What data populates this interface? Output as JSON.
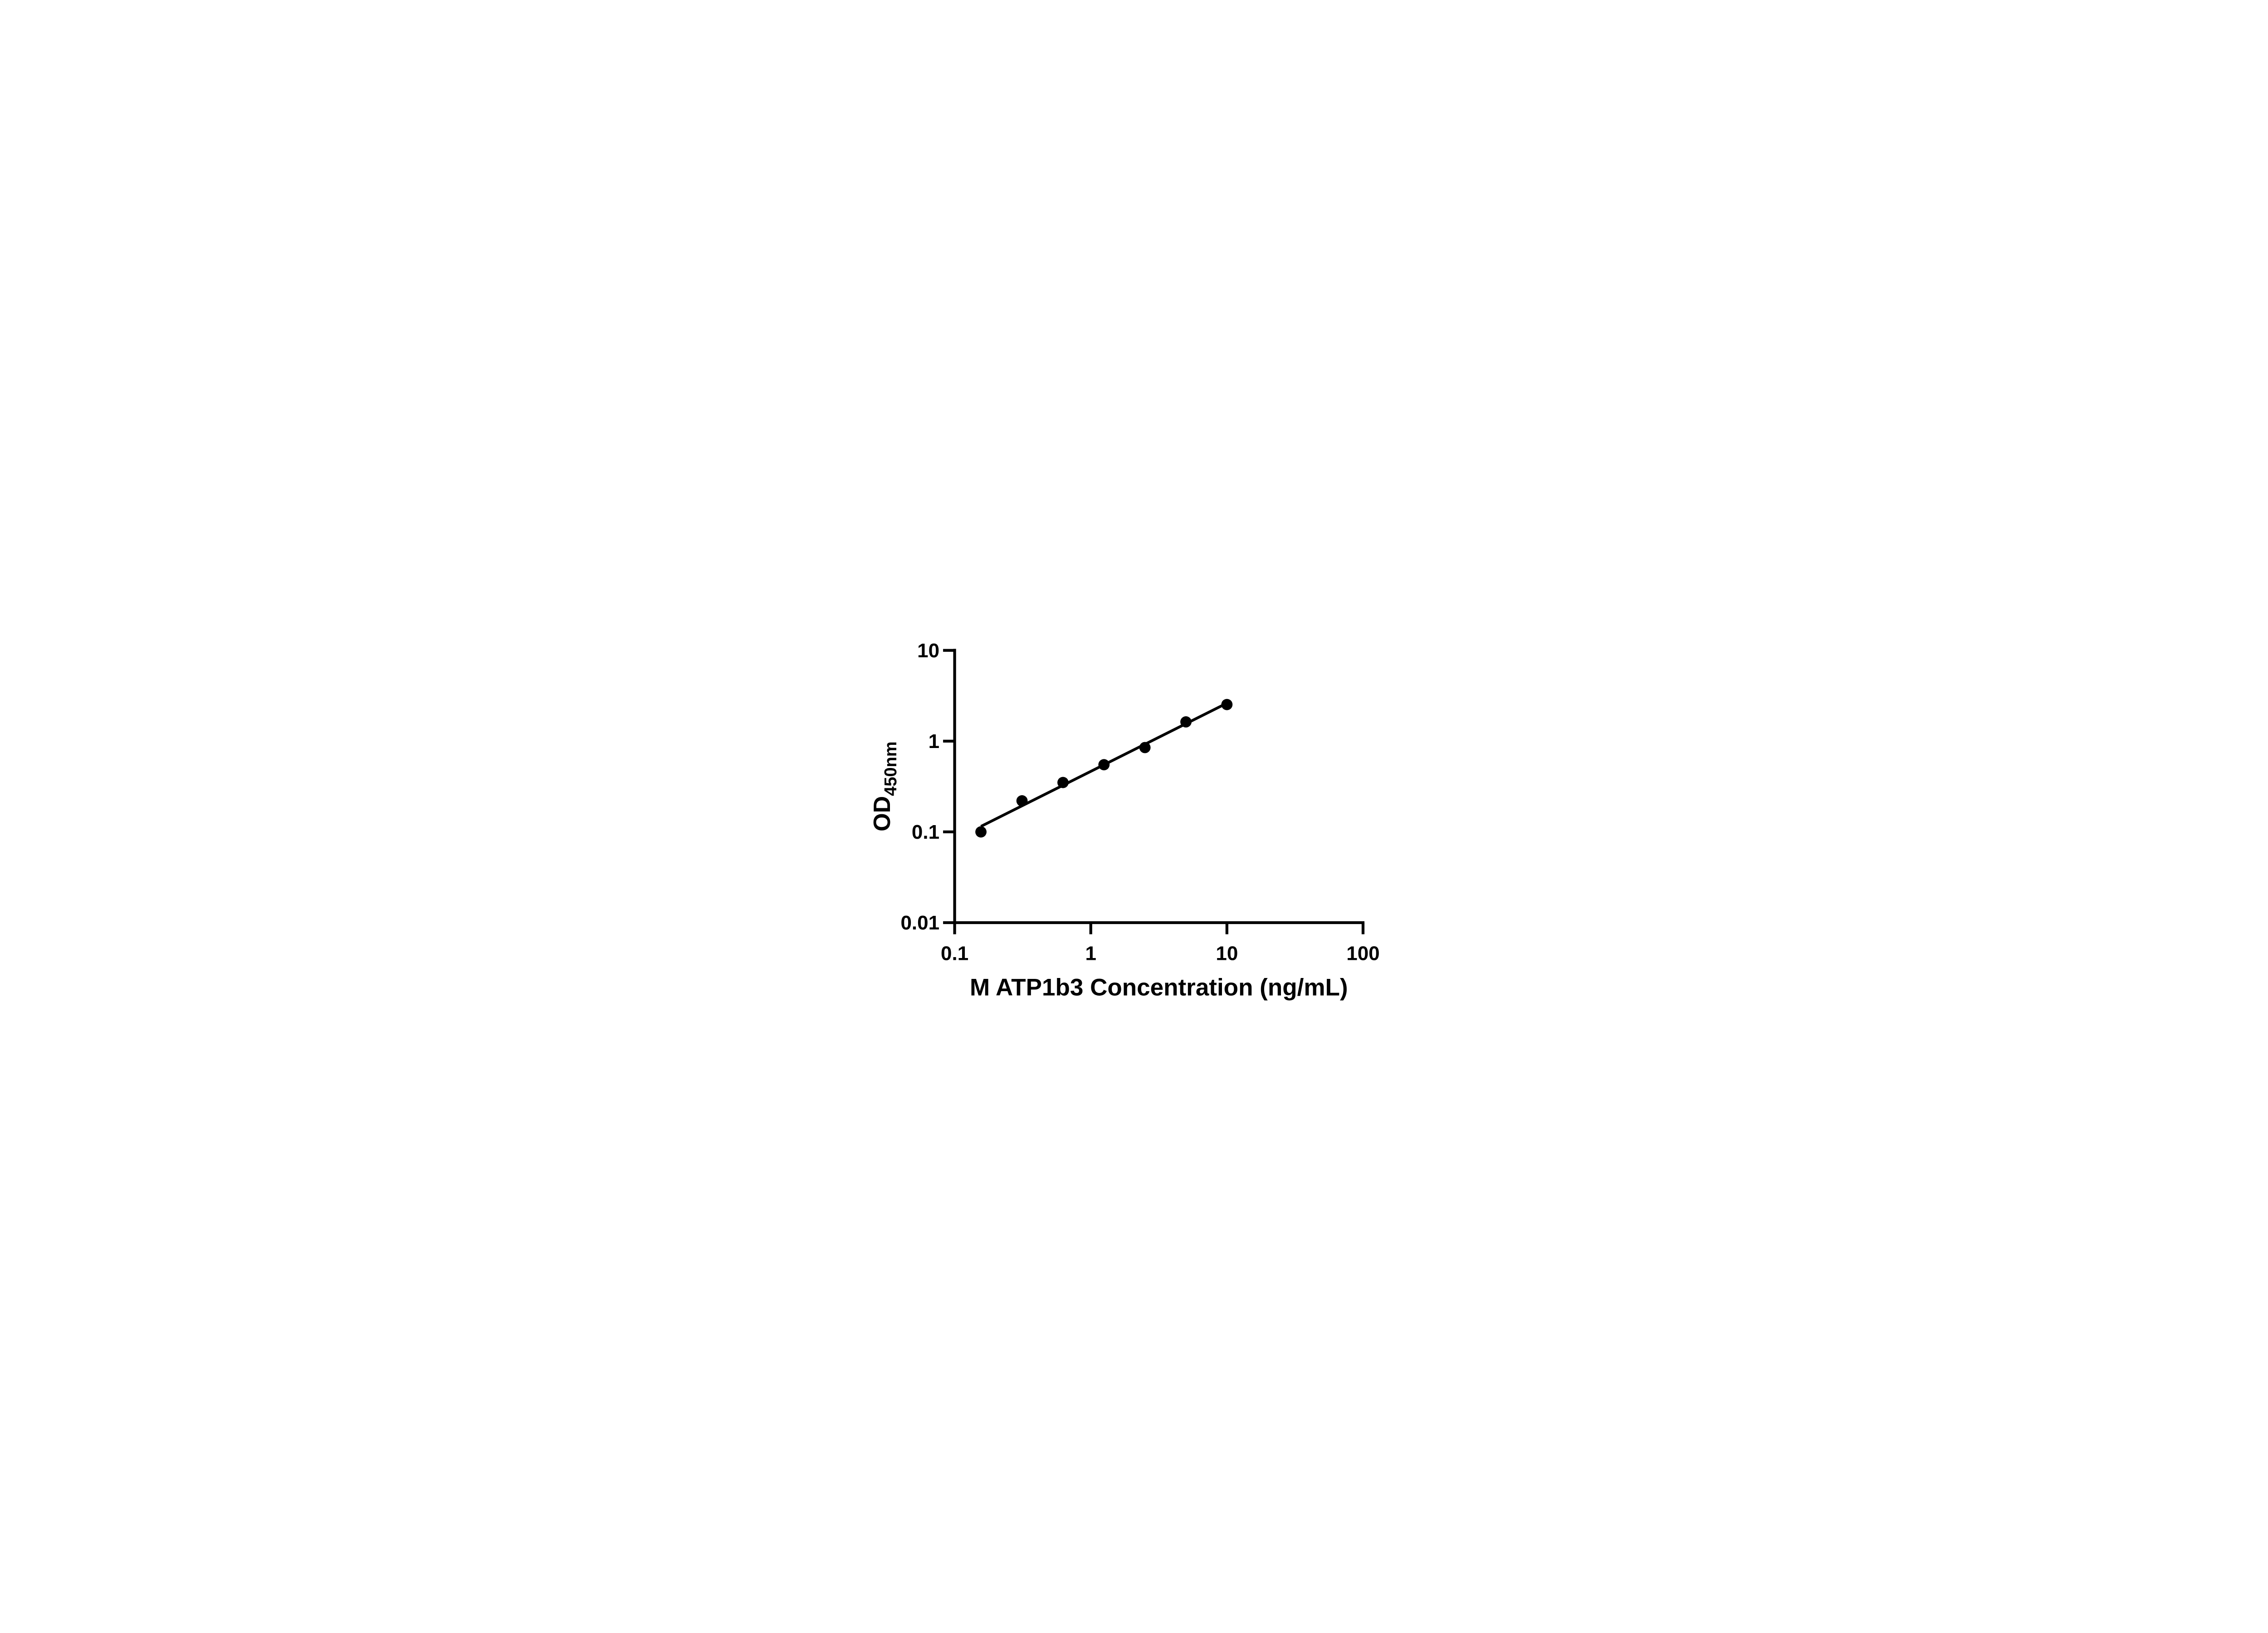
{
  "page": {
    "background": "#ffffff"
  },
  "chart_data": {
    "type": "scatter",
    "title": "",
    "xlabel": "M ATP1b3 Concentration (ng/mL)",
    "ylabel_main": "OD",
    "ylabel_sub": "450nm",
    "x_scale": "log10",
    "y_scale": "log10",
    "xlim": [
      0.1,
      100
    ],
    "ylim": [
      0.01,
      10
    ],
    "grid": false,
    "legend": null,
    "ink_color": "#000000",
    "x_ticks": [
      {
        "value": 0.1,
        "label": "0.1"
      },
      {
        "value": 1,
        "label": "1"
      },
      {
        "value": 10,
        "label": "10"
      },
      {
        "value": 100,
        "label": "100"
      }
    ],
    "y_ticks": [
      {
        "value": 10,
        "label": "10"
      },
      {
        "value": 1,
        "label": "1"
      },
      {
        "value": 0.1,
        "label": "0.1"
      },
      {
        "value": 0.01,
        "label": "0.01"
      }
    ],
    "series": [
      {
        "marker": "filled-circle",
        "color": "#000000",
        "x": [
          0.156,
          0.3125,
          0.625,
          1.25,
          2.5,
          5,
          10
        ],
        "y": [
          0.1,
          0.22,
          0.35,
          0.55,
          0.85,
          1.63,
          2.53
        ]
      }
    ],
    "trendline": {
      "type": "linear-loglog",
      "x1": 0.156,
      "y1": 0.115,
      "x2": 10,
      "y2": 2.62,
      "color": "#000000"
    }
  }
}
